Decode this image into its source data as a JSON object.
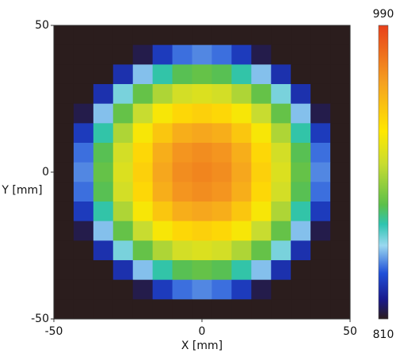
{
  "chart_data": {
    "type": "heatmap",
    "xlabel": "X [mm]",
    "ylabel": "Y [mm]",
    "x": [
      -46.67,
      -40,
      -33.33,
      -26.67,
      -20,
      -13.33,
      -6.67,
      0,
      6.67,
      13.33,
      20,
      26.67,
      33.33,
      40,
      46.67
    ],
    "y": [
      46.67,
      40,
      33.33,
      26.67,
      20,
      13.33,
      6.67,
      0,
      -6.67,
      -13.33,
      -20,
      -26.67,
      -33.33,
      -40,
      -46.67
    ],
    "z": [
      [
        810,
        810,
        810,
        810,
        810,
        810,
        810,
        810,
        810,
        810,
        810,
        810,
        810,
        810,
        810
      ],
      [
        810,
        810,
        810,
        810,
        815,
        832,
        842,
        845,
        842,
        832,
        815,
        810,
        810,
        810,
        810
      ],
      [
        810,
        810,
        810,
        829,
        852,
        869,
        879,
        882,
        879,
        869,
        852,
        829,
        810,
        810,
        810
      ],
      [
        810,
        810,
        829,
        859,
        882,
        899,
        909,
        912,
        909,
        899,
        882,
        859,
        829,
        810,
        810
      ],
      [
        810,
        815,
        852,
        882,
        905,
        922,
        932,
        935,
        932,
        922,
        905,
        882,
        852,
        815,
        810
      ],
      [
        810,
        832,
        869,
        899,
        922,
        939,
        949,
        952,
        949,
        939,
        922,
        899,
        869,
        832,
        810
      ],
      [
        810,
        842,
        879,
        909,
        932,
        949,
        959,
        962,
        959,
        949,
        932,
        909,
        879,
        842,
        810
      ],
      [
        810,
        845,
        882,
        912,
        935,
        952,
        962,
        965,
        962,
        952,
        935,
        912,
        882,
        845,
        810
      ],
      [
        810,
        842,
        879,
        909,
        932,
        949,
        959,
        962,
        959,
        949,
        932,
        909,
        879,
        842,
        810
      ],
      [
        810,
        832,
        869,
        899,
        922,
        939,
        949,
        952,
        949,
        939,
        922,
        899,
        869,
        832,
        810
      ],
      [
        810,
        815,
        852,
        882,
        905,
        922,
        932,
        935,
        932,
        922,
        905,
        882,
        852,
        815,
        810
      ],
      [
        810,
        810,
        829,
        859,
        882,
        899,
        909,
        912,
        909,
        899,
        882,
        859,
        829,
        810,
        810
      ],
      [
        810,
        810,
        810,
        829,
        852,
        869,
        879,
        882,
        879,
        869,
        852,
        829,
        810,
        810,
        810
      ],
      [
        810,
        810,
        810,
        810,
        815,
        832,
        842,
        845,
        842,
        832,
        815,
        810,
        810,
        810,
        810
      ],
      [
        810,
        810,
        810,
        810,
        810,
        810,
        810,
        810,
        810,
        810,
        810,
        810,
        810,
        810,
        810
      ]
    ],
    "xlim": [
      -50,
      50
    ],
    "ylim": [
      -50,
      50
    ],
    "xticks": [
      -50,
      0,
      50
    ],
    "yticks": [
      -50,
      0,
      50
    ],
    "zlim": [
      810,
      990
    ],
    "zticks": [
      810,
      990
    ],
    "colorscale": [
      [
        810,
        "#2b1d1d"
      ],
      [
        822,
        "#1a1a8c"
      ],
      [
        838,
        "#1f4fd8"
      ],
      [
        855,
        "#9ad8f0"
      ],
      [
        868,
        "#2ec4b0"
      ],
      [
        880,
        "#5cc04a"
      ],
      [
        905,
        "#c8dc30"
      ],
      [
        925,
        "#ffe800"
      ],
      [
        955,
        "#f5a020"
      ],
      [
        990,
        "#e8401a"
      ]
    ]
  }
}
